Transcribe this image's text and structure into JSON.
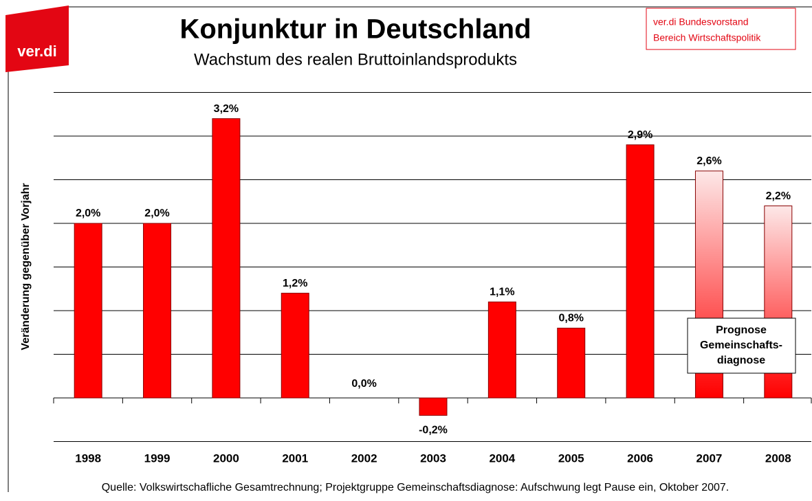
{
  "chart_data": {
    "type": "bar",
    "logo": "ver.di",
    "title": "Konjunktur in Deutschland",
    "subtitle": "Wachstum des realen Bruttoinlandsprodukts",
    "publisher": [
      "ver.di Bundesvorstand",
      "Bereich Wirtschaftspolitik"
    ],
    "ylabel": "Veränderung gegenüber Vorjahr",
    "source": "Quelle: Volkswirtschafliche Gesamtrechnung; Projektgruppe Gemeinschaftsdiagnose: Aufschwung legt Pause ein, Oktober 2007.",
    "categories": [
      "1998",
      "1999",
      "2000",
      "2001",
      "2002",
      "2003",
      "2004",
      "2005",
      "2006",
      "2007",
      "2008"
    ],
    "values": [
      2.0,
      2.0,
      3.2,
      1.2,
      0.0,
      -0.2,
      1.1,
      0.8,
      2.9,
      2.6,
      2.2
    ],
    "value_labels": [
      "2,0%",
      "2,0%",
      "3,2%",
      "1,2%",
      "0,0%",
      "-0,2%",
      "1,1%",
      "0,8%",
      "2,9%",
      "2,6%",
      "2,2%"
    ],
    "colors": [
      "#ff0000",
      "#ff0000",
      "#ff0000",
      "#ff0000",
      "#ff0000",
      "#ff0000",
      "#ff0000",
      "#ff0000",
      "#ff0000",
      [
        "#fde8e8",
        "#ff0000"
      ],
      [
        "#fde8e8",
        "#ff0000"
      ]
    ],
    "annotation": [
      "Prognose",
      "Gemeinschafts-",
      "diagnose"
    ],
    "ylim": [
      -0.5,
      3.5
    ],
    "yticks": [
      -0.5,
      0,
      0.5,
      1,
      1.5,
      2,
      2.5,
      3,
      3.5
    ],
    "grid": true
  }
}
